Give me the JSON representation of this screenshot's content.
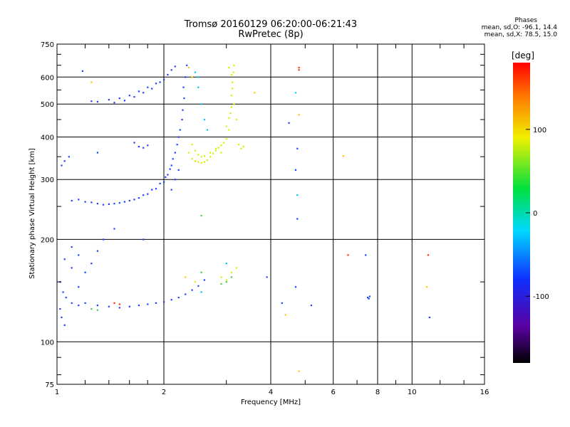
{
  "header": {
    "title_line1": "Tromsø 20160129 06:20:00-06:21:43",
    "title_line2": "RwPretec (8p)"
  },
  "phase_box": {
    "title": "Phases",
    "line1": "mean, sd,O: -96.1, 14.4",
    "line2": "mean, sd,X:  78.5, 15.0"
  },
  "colorbar": {
    "unit_label": "[deg]",
    "tick_labels": [
      "100",
      "0",
      "-100"
    ],
    "tick_values": [
      100,
      0,
      -100
    ],
    "range": [
      -180,
      180
    ]
  },
  "chart_data": {
    "type": "scatter",
    "title": "Tromsø 20160129 06:20:00-06:21:43",
    "subtitle": "RwPretec (8p)",
    "xlabel": "Frequency [MHz]",
    "ylabel": "Stationary phase Virtual Height [km]",
    "x_scale": "log",
    "y_scale": "log",
    "xlim": [
      1,
      16
    ],
    "ylim": [
      75,
      750
    ],
    "x_ticks": [
      1,
      2,
      4,
      6,
      8,
      10,
      16
    ],
    "x_tick_labels": [
      "1",
      "2",
      "4",
      "6",
      "8",
      "10",
      "16"
    ],
    "y_ticks": [
      75,
      100,
      200,
      300,
      400,
      500,
      600,
      750
    ],
    "y_tick_labels": [
      "75",
      "100",
      "200",
      "300",
      "400",
      "500",
      "600",
      "750"
    ],
    "color_scale": "phase [deg]",
    "series": [
      {
        "color": "#1f3fff",
        "points": [
          [
            1.02,
            150
          ],
          [
            1.04,
            140
          ],
          [
            1.06,
            135
          ],
          [
            1.1,
            130
          ],
          [
            1.15,
            128
          ],
          [
            1.2,
            130
          ],
          [
            1.3,
            128
          ],
          [
            1.4,
            127
          ],
          [
            1.5,
            126
          ],
          [
            1.6,
            127
          ],
          [
            1.7,
            128
          ],
          [
            1.8,
            129
          ],
          [
            1.9,
            130
          ],
          [
            2.0,
            131
          ],
          [
            2.1,
            133
          ],
          [
            2.2,
            135
          ],
          [
            2.3,
            138
          ],
          [
            2.4,
            142
          ],
          [
            2.5,
            146
          ],
          [
            2.6,
            152
          ],
          [
            1.05,
            175
          ],
          [
            1.1,
            165
          ],
          [
            1.15,
            180
          ],
          [
            1.2,
            160
          ],
          [
            1.25,
            170
          ],
          [
            1.3,
            185
          ],
          [
            1.02,
            125
          ],
          [
            1.03,
            118
          ],
          [
            1.05,
            112
          ],
          [
            1.3,
            255
          ],
          [
            1.4,
            254
          ],
          [
            1.5,
            256
          ],
          [
            1.6,
            260
          ],
          [
            1.7,
            265
          ],
          [
            1.8,
            272
          ],
          [
            1.9,
            282
          ],
          [
            2.0,
            295
          ],
          [
            2.05,
            310
          ],
          [
            2.1,
            330
          ],
          [
            2.15,
            360
          ],
          [
            2.2,
            400
          ],
          [
            2.25,
            450
          ],
          [
            2.28,
            520
          ],
          [
            2.3,
            600
          ],
          [
            2.32,
            650
          ],
          [
            1.1,
            260
          ],
          [
            1.15,
            262
          ],
          [
            1.2,
            258
          ],
          [
            1.25,
            257
          ],
          [
            1.35,
            253
          ],
          [
            1.45,
            255
          ],
          [
            1.55,
            258
          ],
          [
            1.65,
            262
          ],
          [
            1.75,
            270
          ],
          [
            1.85,
            280
          ],
          [
            1.95,
            292
          ],
          [
            2.02,
            305
          ],
          [
            2.08,
            322
          ],
          [
            2.12,
            345
          ],
          [
            2.18,
            380
          ],
          [
            2.22,
            420
          ],
          [
            2.26,
            480
          ],
          [
            2.27,
            560
          ],
          [
            2.1,
            280
          ],
          [
            2.15,
            300
          ],
          [
            2.2,
            320
          ],
          [
            1.05,
            340
          ],
          [
            1.08,
            350
          ],
          [
            1.03,
            330
          ],
          [
            1.25,
            510
          ],
          [
            1.3,
            508
          ],
          [
            1.4,
            515
          ],
          [
            1.5,
            520
          ],
          [
            1.6,
            530
          ],
          [
            1.7,
            545
          ],
          [
            1.8,
            560
          ],
          [
            1.9,
            575
          ],
          [
            2.0,
            590
          ],
          [
            2.05,
            610
          ],
          [
            2.1,
            630
          ],
          [
            2.15,
            645
          ],
          [
            1.45,
            505
          ],
          [
            1.55,
            512
          ],
          [
            1.65,
            525
          ],
          [
            1.75,
            540
          ],
          [
            1.85,
            555
          ],
          [
            1.95,
            580
          ],
          [
            1.18,
            625
          ],
          [
            1.7,
            375
          ],
          [
            1.75,
            372
          ],
          [
            1.8,
            378
          ],
          [
            1.65,
            385
          ],
          [
            1.3,
            360
          ],
          [
            1.35,
            200
          ],
          [
            1.75,
            200
          ],
          [
            1.45,
            215
          ],
          [
            4.7,
            145
          ],
          [
            4.3,
            130
          ],
          [
            4.5,
            440
          ],
          [
            4.7,
            320
          ],
          [
            4.75,
            230
          ],
          [
            4.75,
            370
          ],
          [
            7.5,
            135
          ],
          [
            7.6,
            136
          ],
          [
            7.55,
            134
          ],
          [
            5.2,
            128
          ],
          [
            11.2,
            118
          ],
          [
            7.4,
            180
          ],
          [
            3.9,
            155
          ],
          [
            1.1,
            190
          ],
          [
            1.15,
            145
          ]
        ]
      },
      {
        "color": "#00c8ff",
        "points": [
          [
            2.5,
            560
          ],
          [
            2.55,
            500
          ],
          [
            2.6,
            450
          ],
          [
            2.65,
            420
          ],
          [
            2.5,
            600
          ],
          [
            2.45,
            620
          ],
          [
            4.75,
            270
          ],
          [
            4.7,
            540
          ],
          [
            3.0,
            170
          ],
          [
            2.55,
            140
          ]
        ]
      },
      {
        "color": "#40d040",
        "points": [
          [
            2.55,
            235
          ],
          [
            2.55,
            160
          ],
          [
            1.25,
            125
          ],
          [
            1.3,
            124
          ],
          [
            2.9,
            148
          ],
          [
            3.0,
            150
          ],
          [
            3.1,
            155
          ]
        ]
      },
      {
        "color": "#d8f000",
        "points": [
          [
            2.35,
            360
          ],
          [
            2.4,
            345
          ],
          [
            2.45,
            340
          ],
          [
            2.5,
            338
          ],
          [
            2.55,
            336
          ],
          [
            2.6,
            338
          ],
          [
            2.65,
            342
          ],
          [
            2.7,
            350
          ],
          [
            2.75,
            358
          ],
          [
            2.8,
            365
          ],
          [
            2.85,
            372
          ],
          [
            2.9,
            378
          ],
          [
            2.95,
            385
          ],
          [
            3.0,
            395
          ],
          [
            3.05,
            420
          ],
          [
            3.08,
            470
          ],
          [
            3.1,
            530
          ],
          [
            3.12,
            580
          ],
          [
            3.14,
            620
          ],
          [
            3.15,
            650
          ],
          [
            3.05,
            640
          ],
          [
            3.1,
            610
          ],
          [
            3.12,
            555
          ],
          [
            3.15,
            500
          ],
          [
            3.2,
            450
          ],
          [
            3.25,
            380
          ],
          [
            3.3,
            370
          ],
          [
            3.35,
            375
          ],
          [
            2.4,
            380
          ],
          [
            2.45,
            365
          ],
          [
            2.5,
            355
          ],
          [
            2.55,
            350
          ],
          [
            2.6,
            352
          ],
          [
            2.7,
            360
          ],
          [
            2.8,
            370
          ],
          [
            2.9,
            360
          ],
          [
            3.0,
            430
          ],
          [
            3.05,
            455
          ],
          [
            3.1,
            490
          ],
          [
            2.9,
            155
          ],
          [
            3.0,
            152
          ],
          [
            3.1,
            160
          ],
          [
            3.2,
            165
          ],
          [
            2.45,
            150
          ]
        ]
      },
      {
        "color": "#ffc800",
        "points": [
          [
            2.4,
            600
          ],
          [
            2.35,
            640
          ],
          [
            3.6,
            540
          ],
          [
            2.3,
            155
          ],
          [
            4.8,
            465
          ],
          [
            4.8,
            82
          ],
          [
            11.0,
            145
          ],
          [
            6.4,
            352
          ],
          [
            1.25,
            580
          ],
          [
            4.4,
            120
          ]
        ]
      },
      {
        "color": "#ff3000",
        "points": [
          [
            4.8,
            640
          ],
          [
            4.8,
            630
          ],
          [
            6.6,
            180
          ],
          [
            11.1,
            180
          ],
          [
            1.45,
            130
          ],
          [
            1.5,
            129
          ]
        ]
      }
    ]
  }
}
